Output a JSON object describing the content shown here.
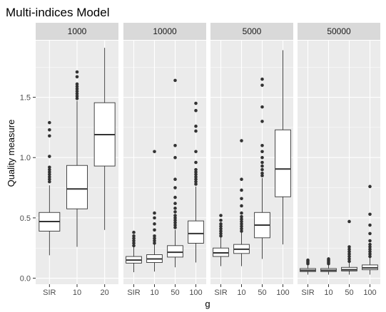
{
  "chart_data": {
    "type": "boxplot",
    "title": "Multi-indices Model",
    "xlabel": "g",
    "ylabel": "Quality measure",
    "ylim": [
      -0.05,
      1.97
    ],
    "yticks": [
      0.0,
      0.5,
      1.0,
      1.5
    ],
    "ytick_labels": [
      "0.0",
      "0.5",
      "1.0",
      "1.5"
    ],
    "colors": {
      "panel_bg": "#EBEBEB",
      "strip_bg": "#D9D9D9",
      "grid": "#FFFFFF",
      "box_fill": "#FFFFFF",
      "box_line": "#333333"
    },
    "facets": [
      {
        "label": "1000",
        "groups": [
          {
            "x": "SIR",
            "q1": 0.39,
            "median": 0.47,
            "q3": 0.545,
            "whisker_low": 0.19,
            "whisker_high": 0.77,
            "outliers": [
              0.8,
              0.82,
              0.84,
              0.86,
              0.88,
              0.9,
              0.92,
              1.01,
              1.18,
              1.23,
              1.29
            ]
          },
          {
            "x": "10",
            "q1": 0.575,
            "median": 0.74,
            "q3": 0.935,
            "whisker_low": 0.26,
            "whisker_high": 1.47,
            "outliers": [
              1.49,
              1.51,
              1.53,
              1.55,
              1.57,
              1.59,
              1.61,
              1.67,
              1.71
            ]
          },
          {
            "x": "20",
            "q1": 0.93,
            "median": 1.19,
            "q3": 1.455,
            "whisker_low": 0.4,
            "whisker_high": 1.91,
            "outliers": []
          }
        ]
      },
      {
        "label": "10000",
        "groups": [
          {
            "x": "SIR",
            "q1": 0.125,
            "median": 0.15,
            "q3": 0.18,
            "whisker_low": 0.05,
            "whisker_high": 0.26,
            "outliers": [
              0.27,
              0.29,
              0.31,
              0.33,
              0.35,
              0.38
            ]
          },
          {
            "x": "10",
            "q1": 0.13,
            "median": 0.16,
            "q3": 0.195,
            "whisker_low": 0.055,
            "whisker_high": 0.28,
            "outliers": [
              0.29,
              0.31,
              0.33,
              0.35,
              0.4,
              0.45,
              0.5,
              0.54,
              1.05
            ]
          },
          {
            "x": "50",
            "q1": 0.175,
            "median": 0.215,
            "q3": 0.27,
            "whisker_low": 0.09,
            "whisker_high": 0.4,
            "outliers": [
              0.42,
              0.44,
              0.46,
              0.48,
              0.5,
              0.52,
              0.55,
              0.58,
              0.62,
              0.67,
              0.75,
              0.82,
              1.0,
              1.1,
              1.64
            ]
          },
          {
            "x": "100",
            "q1": 0.29,
            "median": 0.37,
            "q3": 0.475,
            "whisker_low": 0.13,
            "whisker_high": 0.76,
            "outliers": [
              0.78,
              0.8,
              0.82,
              0.84,
              0.86,
              0.88,
              0.9,
              0.96,
              1.05,
              1.22,
              1.26,
              1.39,
              1.45
            ]
          }
        ]
      },
      {
        "label": "5000",
        "groups": [
          {
            "x": "SIR",
            "q1": 0.18,
            "median": 0.21,
            "q3": 0.25,
            "whisker_low": 0.1,
            "whisker_high": 0.34,
            "outliers": [
              0.35,
              0.37,
              0.39,
              0.41,
              0.43,
              0.45,
              0.48,
              0.52
            ]
          },
          {
            "x": "10",
            "q1": 0.205,
            "median": 0.24,
            "q3": 0.28,
            "whisker_low": 0.1,
            "whisker_high": 0.38,
            "outliers": [
              0.39,
              0.41,
              0.43,
              0.45,
              0.47,
              0.49,
              0.51,
              0.54,
              0.6,
              0.66,
              0.73,
              0.82,
              1.14
            ]
          },
          {
            "x": "50",
            "q1": 0.335,
            "median": 0.44,
            "q3": 0.545,
            "whisker_low": 0.16,
            "whisker_high": 0.83,
            "outliers": [
              0.85,
              0.87,
              0.9,
              0.93,
              0.96,
              1.0,
              1.05,
              1.1,
              1.3,
              1.42,
              1.6,
              1.65
            ]
          },
          {
            "x": "100",
            "q1": 0.675,
            "median": 0.905,
            "q3": 1.23,
            "whisker_low": 0.28,
            "whisker_high": 1.89,
            "outliers": []
          }
        ]
      },
      {
        "label": "50000",
        "groups": [
          {
            "x": "SIR",
            "q1": 0.055,
            "median": 0.065,
            "q3": 0.08,
            "whisker_low": 0.03,
            "whisker_high": 0.11,
            "outliers": [
              0.12,
              0.13,
              0.14,
              0.15
            ]
          },
          {
            "x": "10",
            "q1": 0.055,
            "median": 0.065,
            "q3": 0.08,
            "whisker_low": 0.03,
            "whisker_high": 0.11,
            "outliers": [
              0.12,
              0.13,
              0.14,
              0.15,
              0.16
            ]
          },
          {
            "x": "50",
            "q1": 0.06,
            "median": 0.07,
            "q3": 0.09,
            "whisker_low": 0.03,
            "whisker_high": 0.13,
            "outliers": [
              0.14,
              0.16,
              0.18,
              0.2,
              0.22,
              0.24,
              0.26,
              0.47
            ]
          },
          {
            "x": "100",
            "q1": 0.07,
            "median": 0.085,
            "q3": 0.11,
            "whisker_low": 0.03,
            "whisker_high": 0.17,
            "outliers": [
              0.18,
              0.2,
              0.22,
              0.24,
              0.26,
              0.28,
              0.31,
              0.37,
              0.44,
              0.53,
              0.76
            ]
          }
        ]
      }
    ]
  }
}
